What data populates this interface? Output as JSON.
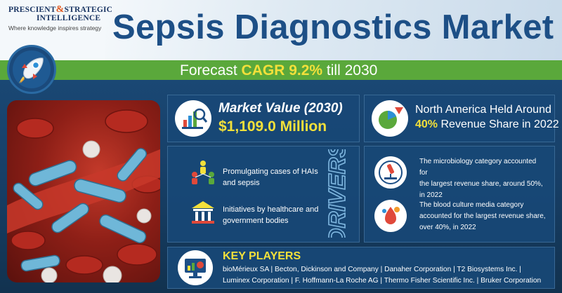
{
  "brand": {
    "line1_a": "PRESCIENT",
    "line1_amp": "&",
    "line1_b": "STRATEGIC",
    "line2": "INTELLIGENCE",
    "tagline": "Where knowledge inspires strategy"
  },
  "header": {
    "title": "Sepsis Diagnostics Market"
  },
  "forecast": {
    "prefix": "Forecast",
    "highlight": "CAGR 9.2%",
    "suffix": "till 2030"
  },
  "market_value": {
    "label": "Market Value (2030)",
    "value": "$1,109.0 Million"
  },
  "regional": {
    "line1": "North America Held Around",
    "highlight": "40%",
    "line2_rest": "Revenue Share in 2022"
  },
  "drivers": {
    "heading": "DRIVERS",
    "items": [
      {
        "line1": "Promulgating cases of HAIs",
        "line2": "and sepsis",
        "icon": "people-network-icon"
      },
      {
        "line1": "Initiatives by healthcare and",
        "line2": "government bodies",
        "icon": "government-building-icon"
      }
    ]
  },
  "stats": [
    {
      "line1": "The microbiology category accounted for",
      "line2": "the largest revenue share, around 50%,",
      "line3": "in 2022",
      "icon": "microscope-icon"
    },
    {
      "line1": "The blood culture media category",
      "line2": "accounted for the largest revenue share,",
      "line3": "over 40%, in 2022",
      "icon": "blood-culture-icon"
    }
  ],
  "key_players": {
    "title": "KEY PLAYERS",
    "line1": "bioMérieux SA  |  Becton, Dickinson and Company  |  Danaher Corporation  |  T2 Biosystems Inc.  |",
    "line2": "Luminex Corporation  |  F. Hoffmann-La Roche AG  |  Thermo Fisher Scientific Inc.  |  Bruker Corporation"
  },
  "colors": {
    "accent_yellow": "#f3e03a",
    "green_bar": "#5aa83b",
    "navy": "#1d4f86",
    "card": "#184876"
  }
}
